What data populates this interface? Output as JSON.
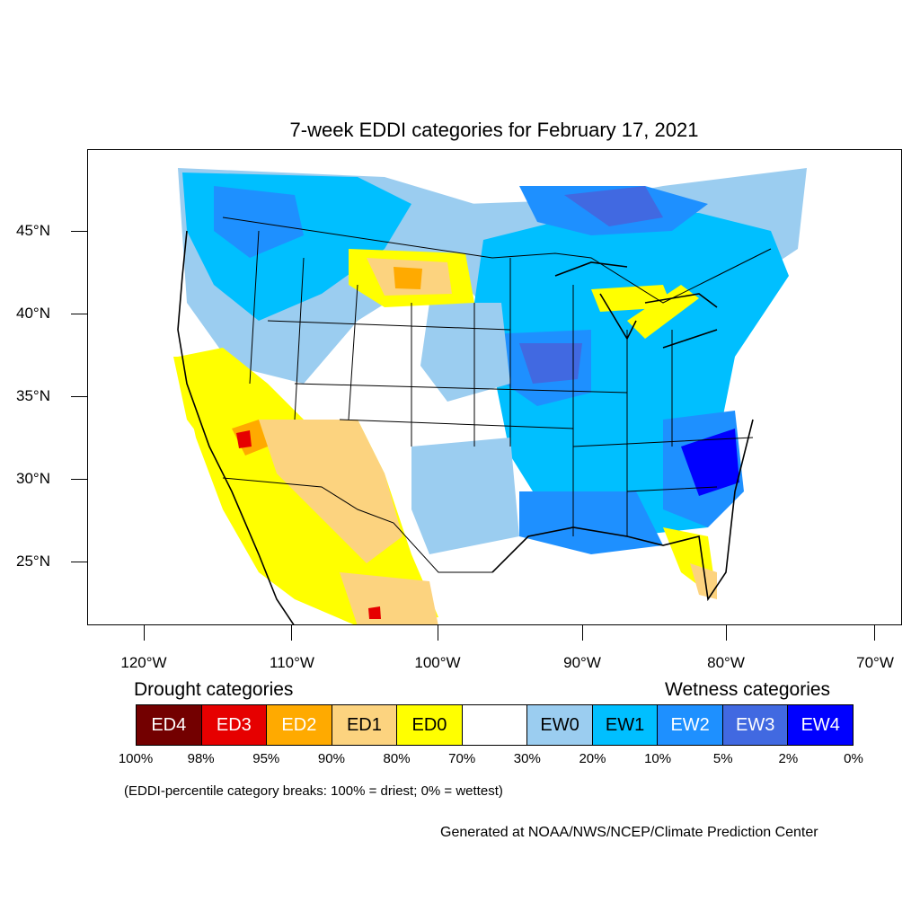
{
  "title": "7-week EDDI categories for February 17, 2021",
  "map": {
    "lat_labels": [
      "45°N",
      "40°N",
      "35°N",
      "30°N",
      "25°N"
    ],
    "lon_labels": [
      "120°W",
      "110°W",
      "100°W",
      "90°W",
      "80°W",
      "70°W"
    ]
  },
  "legend": {
    "drought_heading": "Drought categories",
    "wetness_heading": "Wetness categories",
    "categories": [
      {
        "label": "ED4",
        "color": "#730000",
        "text_color": "#ffffff"
      },
      {
        "label": "ED3",
        "color": "#e60000",
        "text_color": "#ffffff"
      },
      {
        "label": "ED2",
        "color": "#ffaa00",
        "text_color": "#ffffff"
      },
      {
        "label": "ED1",
        "color": "#fcd37f",
        "text_color": "#000000"
      },
      {
        "label": "ED0",
        "color": "#ffff00",
        "text_color": "#000000"
      },
      {
        "label": "",
        "color": "#ffffff",
        "text_color": "#000000"
      },
      {
        "label": "EW0",
        "color": "#9bcdf0",
        "text_color": "#000000"
      },
      {
        "label": "EW1",
        "color": "#00bfff",
        "text_color": "#000000"
      },
      {
        "label": "EW2",
        "color": "#1e90ff",
        "text_color": "#ffffff"
      },
      {
        "label": "EW3",
        "color": "#4169e1",
        "text_color": "#ffffff"
      },
      {
        "label": "EW4",
        "color": "#0000ff",
        "text_color": "#ffffff"
      }
    ],
    "breaks": [
      "100%",
      "98%",
      "95%",
      "90%",
      "80%",
      "70%",
      "30%",
      "20%",
      "10%",
      "5%",
      "2%",
      "0%"
    ]
  },
  "note": "(EDDI-percentile category breaks: 100% = driest; 0% = wettest)",
  "credit": "Generated at NOAA/NWS/NCEP/Climate Prediction Center"
}
